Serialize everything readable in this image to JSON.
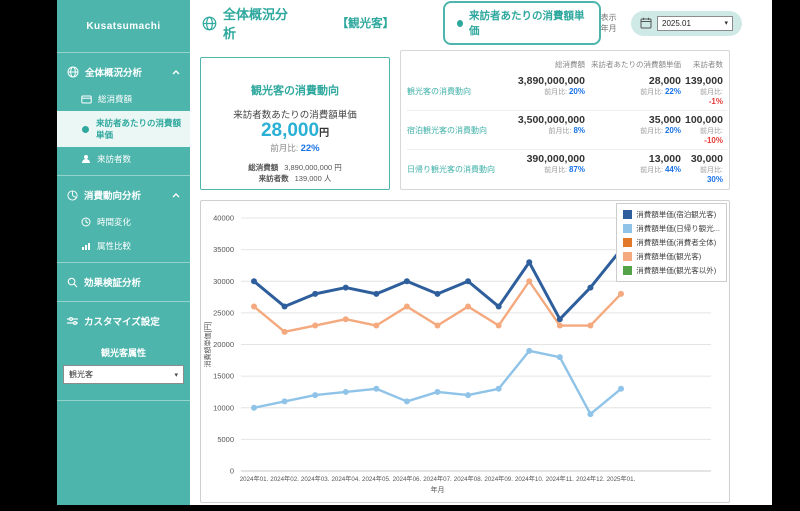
{
  "sidebar": {
    "logo": "Kusatsumachi",
    "sections": [
      {
        "label": "全体概況分析",
        "icon": "globe-icon",
        "expanded": true,
        "items": [
          {
            "label": "総消費額",
            "icon": "wallet-icon",
            "active": false
          },
          {
            "label": "来訪者あたりの消費額単価",
            "icon": "dot-icon",
            "active": true
          },
          {
            "label": "来訪者数",
            "icon": "person-icon",
            "active": false
          }
        ]
      },
      {
        "label": "消費動向分析",
        "icon": "pie-icon",
        "expanded": true,
        "items": [
          {
            "label": "時間変化",
            "icon": "clock-icon",
            "active": false
          },
          {
            "label": "属性比較",
            "icon": "bar-chart-icon",
            "active": false
          }
        ]
      },
      {
        "label": "効果検証分析",
        "icon": "magnifier-icon",
        "expanded": false,
        "items": []
      }
    ],
    "customize": {
      "label": "カスタマイズ設定",
      "icon": "sliders-icon",
      "attribute_label": "観光客属性",
      "attribute_value": "観光客"
    }
  },
  "header": {
    "title": "全体概況分析",
    "segment": "【観光客】",
    "active_metric": "来訪者あたりの消費額単価",
    "display_month_label": "表示年月",
    "month_value": "2025.01"
  },
  "summary_card": {
    "title": "観光客の消費動向",
    "metric_label": "来訪者数あたりの消費額単価",
    "metric_value": "28,000",
    "metric_unit": "円",
    "mom_label": "前月比:",
    "mom_value": "22%",
    "mom_dir": "up",
    "details": [
      {
        "label": "総消費額",
        "value": "3,890,000,000 円"
      },
      {
        "label": "来訪者数",
        "value": "139,000 人"
      }
    ]
  },
  "metrics_table": {
    "columns": [
      "総消費額",
      "来訪者あたりの消費額単価",
      "来訪者数"
    ],
    "mom_label": "前月比:",
    "rows": [
      {
        "label": "観光客の消費動向",
        "cells": [
          {
            "value": "3,890,000,000",
            "mom": "20%",
            "dir": "up"
          },
          {
            "value": "28,000",
            "mom": "22%",
            "dir": "up"
          },
          {
            "value": "139,000",
            "mom": "-1%",
            "dir": "down"
          }
        ]
      },
      {
        "label": "宿泊観光客の消費動向",
        "cells": [
          {
            "value": "3,500,000,000",
            "mom": "8%",
            "dir": "up"
          },
          {
            "value": "35,000",
            "mom": "20%",
            "dir": "up"
          },
          {
            "value": "100,000",
            "mom": "-10%",
            "dir": "down"
          }
        ]
      },
      {
        "label": "日帰り観光客の消費動向",
        "cells": [
          {
            "value": "390,000,000",
            "mom": "87%",
            "dir": "up"
          },
          {
            "value": "13,000",
            "mom": "44%",
            "dir": "up"
          },
          {
            "value": "30,000",
            "mom": "30%",
            "dir": "up"
          }
        ]
      }
    ]
  },
  "chart_data": {
    "type": "line",
    "x": [
      "2024年01.",
      "2024年02.",
      "2024年03.",
      "2024年04.",
      "2024年05.",
      "2024年06.",
      "2024年07.",
      "2024年08.",
      "2024年09.",
      "2024年10.",
      "2024年11.",
      "2024年12.",
      "2025年01."
    ],
    "xlabel": "年月",
    "ylabel": "消費額単価[円]",
    "ylim": [
      0,
      40000
    ],
    "ytick_step": 5000,
    "grid": true,
    "legend_position": "top-right",
    "series": [
      {
        "name": "消費額単価(宿泊観光客)",
        "color": "#2e5f9c",
        "line_width": 3,
        "values": [
          30000,
          26000,
          28000,
          29000,
          28000,
          30000,
          28000,
          30000,
          26000,
          33000,
          24000,
          29000,
          35000
        ]
      },
      {
        "name": "消費額単価(日帰り観光...",
        "color": "#8fc3e8",
        "line_width": 2.4,
        "values": [
          10000,
          11000,
          12000,
          12500,
          13000,
          11000,
          12500,
          12000,
          13000,
          19000,
          18000,
          9000,
          13000
        ]
      },
      {
        "name": "消費額単価(消費者全体)",
        "color": "#e2782a",
        "line_width": 2.4,
        "values": []
      },
      {
        "name": "消費額単価(観光客)",
        "color": "#f4a97e",
        "line_width": 2.4,
        "values": [
          26000,
          22000,
          23000,
          24000,
          23000,
          26000,
          23000,
          26000,
          23000,
          30000,
          23000,
          23000,
          28000
        ]
      },
      {
        "name": "消費額単価(観光客以外)",
        "color": "#55a349",
        "line_width": 2.4,
        "values": []
      }
    ]
  },
  "colors": {
    "accent_teal": "#4db5ac",
    "positive_blue": "#1a73e8",
    "negative_red": "#e53935",
    "value_cyan": "#2ab0d5"
  }
}
